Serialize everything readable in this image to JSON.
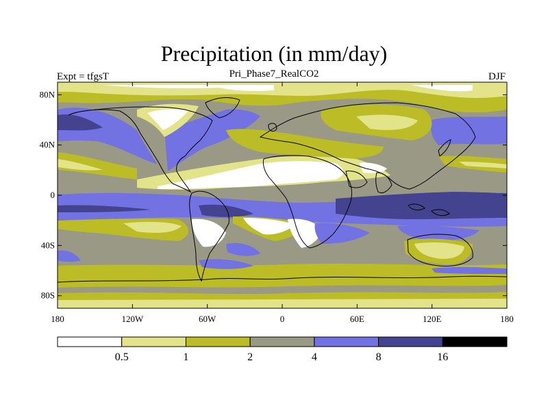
{
  "title": "Precipitation (in mm/day)",
  "subtitle": "Pri_Phase7_RealCO2",
  "left_label": "Expt = tfgsT",
  "right_label": "DJF",
  "map": {
    "projection": "cylindrical-equidistant",
    "lon_range": [
      -180,
      180
    ],
    "lat_range": [
      -90,
      90
    ],
    "y_ticks": [
      {
        "value": 80,
        "label": "80N"
      },
      {
        "value": 40,
        "label": "40N"
      },
      {
        "value": 0,
        "label": "0"
      },
      {
        "value": -40,
        "label": "40S"
      },
      {
        "value": -80,
        "label": "80S"
      }
    ],
    "x_ticks": [
      {
        "value": -180,
        "label": "180"
      },
      {
        "value": -120,
        "label": "120W"
      },
      {
        "value": -60,
        "label": "60W"
      },
      {
        "value": 0,
        "label": "0"
      },
      {
        "value": 60,
        "label": "60E"
      },
      {
        "value": 120,
        "label": "120E"
      },
      {
        "value": 180,
        "label": "180"
      }
    ]
  },
  "colorbar": {
    "levels": [
      "0.5",
      "1",
      "2",
      "4",
      "8",
      "16"
    ],
    "colors": [
      "#ffffff",
      "#e3e38a",
      "#bcbc26",
      "#999985",
      "#7272e2",
      "#434390",
      "#000000"
    ]
  }
}
